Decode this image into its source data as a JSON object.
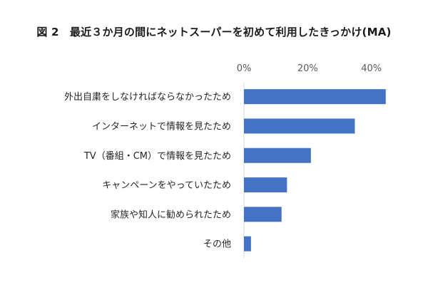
{
  "chart_data": {
    "type": "bar",
    "orientation": "horizontal",
    "title": "図 2　最近３か月の間にネットスーパーを初めて利用したきっかけ(MA)",
    "categories": [
      "外出自粛をしなければならなかったため",
      "インターネットで情報を見たため",
      "TV（番組・CM）で情報を見たため",
      "キャンペーンをやっていたため",
      "家族や知人に勧められたため",
      "その他"
    ],
    "values": [
      44.5,
      34.8,
      21.0,
      13.5,
      11.8,
      2.2
    ],
    "unit": "%",
    "xlim": [
      0,
      45
    ],
    "xticks": [
      0,
      20,
      40
    ],
    "xtick_labels": [
      "0%",
      "20%",
      "40%"
    ],
    "xaxis_position": "top",
    "grid": false,
    "legend": false,
    "bar_color": "#4472c4"
  }
}
